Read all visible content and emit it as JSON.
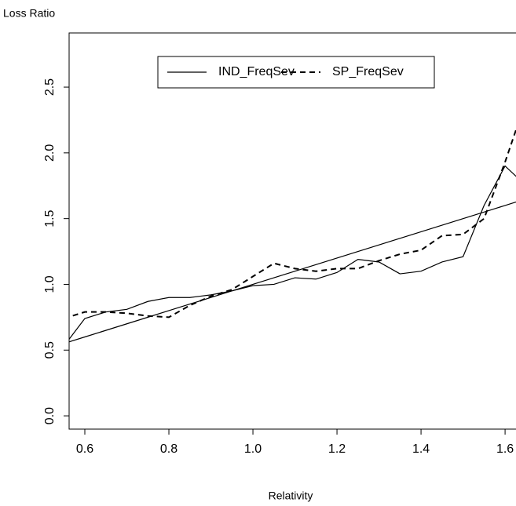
{
  "chart_data": {
    "type": "line",
    "y_label": "Loss Ratio",
    "x_label": "Relativity",
    "x": [
      0.55,
      0.6,
      0.65,
      0.7,
      0.75,
      0.8,
      0.85,
      0.9,
      0.95,
      1.0,
      1.05,
      1.1,
      1.15,
      1.2,
      1.25,
      1.3,
      1.35,
      1.4,
      1.45,
      1.5,
      1.55,
      1.6,
      1.65
    ],
    "series": [
      {
        "name": "IND_FreqSev",
        "color": "#000000",
        "linestyle": "solid",
        "values": [
          0.53,
          0.74,
          0.79,
          0.81,
          0.87,
          0.9,
          0.9,
          0.92,
          0.95,
          0.99,
          1.0,
          1.05,
          1.04,
          1.09,
          1.19,
          1.17,
          1.08,
          1.1,
          1.17,
          1.21,
          1.6,
          1.9,
          1.75
        ]
      },
      {
        "name": "SP_FreqSev",
        "color": "#000000",
        "linestyle": "dashed",
        "values": [
          0.74,
          0.79,
          0.79,
          0.78,
          0.76,
          0.75,
          0.84,
          0.91,
          0.96,
          1.06,
          1.16,
          1.12,
          1.1,
          1.12,
          1.12,
          1.18,
          1.23,
          1.26,
          1.37,
          1.38,
          1.5,
          1.93,
          2.4
        ]
      },
      {
        "color": "#000000",
        "linestyle": "solid",
        "values": [
          0.55,
          0.6,
          0.65,
          0.7,
          0.75,
          0.8,
          0.85,
          0.9,
          0.95,
          1.0,
          1.05,
          1.1,
          1.15,
          1.2,
          1.25,
          1.3,
          1.35,
          1.4,
          1.45,
          1.5,
          1.55,
          1.6,
          1.65
        ]
      }
    ],
    "xlim": [
      0.5626,
      1.626
    ],
    "ylim": [
      -0.101,
      2.912
    ],
    "xticks": [
      {
        "value": 0.6,
        "label": "0.6"
      },
      {
        "value": 0.8,
        "label": "0.8"
      },
      {
        "value": 1.0,
        "label": "1.0"
      },
      {
        "value": 1.2,
        "label": "1.2"
      },
      {
        "value": 1.4,
        "label": "1.4"
      },
      {
        "value": 1.6,
        "label": "1.6"
      }
    ],
    "yticks": [
      {
        "value": 0.0,
        "label": "0.0"
      },
      {
        "value": 0.5,
        "label": "0.5"
      },
      {
        "value": 1.0,
        "label": "1.0"
      },
      {
        "value": 1.5,
        "label": "1.5"
      },
      {
        "value": 2.0,
        "label": "2.0"
      },
      {
        "value": 2.5,
        "label": "2.5"
      }
    ],
    "legend": "top"
  }
}
